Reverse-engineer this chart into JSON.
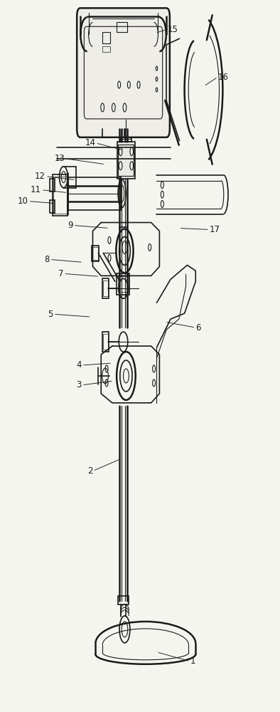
{
  "background_color": "#f5f5f0",
  "line_color": "#1a1a1a",
  "figure_width": 3.94,
  "figure_height": 10.0,
  "dpi": 100,
  "anno_data": [
    {
      "label": "15",
      "pt": [
        0.555,
        0.955
      ],
      "txt": [
        0.6,
        0.96
      ],
      "side": "right"
    },
    {
      "label": "16",
      "pt": [
        0.73,
        0.88
      ],
      "txt": [
        0.78,
        0.893
      ],
      "side": "right"
    },
    {
      "label": "14",
      "pt": [
        0.44,
        0.79
      ],
      "txt": [
        0.34,
        0.8
      ],
      "side": "left"
    },
    {
      "label": "13",
      "pt": [
        0.375,
        0.77
      ],
      "txt": [
        0.23,
        0.778
      ],
      "side": "left"
    },
    {
      "label": "12",
      "pt": [
        0.27,
        0.748
      ],
      "txt": [
        0.16,
        0.753
      ],
      "side": "left"
    },
    {
      "label": "10",
      "pt": [
        0.195,
        0.715
      ],
      "txt": [
        0.098,
        0.718
      ],
      "side": "left"
    },
    {
      "label": "11",
      "pt": [
        0.24,
        0.73
      ],
      "txt": [
        0.145,
        0.734
      ],
      "side": "left"
    },
    {
      "label": "9",
      "pt": [
        0.39,
        0.68
      ],
      "txt": [
        0.26,
        0.684
      ],
      "side": "left"
    },
    {
      "label": "8",
      "pt": [
        0.295,
        0.632
      ],
      "txt": [
        0.175,
        0.636
      ],
      "side": "left"
    },
    {
      "label": "7",
      "pt": [
        0.355,
        0.612
      ],
      "txt": [
        0.225,
        0.616
      ],
      "side": "left"
    },
    {
      "label": "5",
      "pt": [
        0.325,
        0.555
      ],
      "txt": [
        0.188,
        0.559
      ],
      "side": "left"
    },
    {
      "label": "6",
      "pt": [
        0.59,
        0.548
      ],
      "txt": [
        0.7,
        0.54
      ],
      "side": "right"
    },
    {
      "label": "4",
      "pt": [
        0.4,
        0.49
      ],
      "txt": [
        0.29,
        0.487
      ],
      "side": "left"
    },
    {
      "label": "3",
      "pt": [
        0.405,
        0.465
      ],
      "txt": [
        0.29,
        0.459
      ],
      "side": "left"
    },
    {
      "label": "2",
      "pt": [
        0.43,
        0.355
      ],
      "txt": [
        0.33,
        0.338
      ],
      "side": "left"
    },
    {
      "label": "1",
      "pt": [
        0.56,
        0.083
      ],
      "txt": [
        0.68,
        0.07
      ],
      "side": "right"
    },
    {
      "label": "17",
      "pt": [
        0.64,
        0.68
      ],
      "txt": [
        0.75,
        0.678
      ],
      "side": "right"
    }
  ]
}
